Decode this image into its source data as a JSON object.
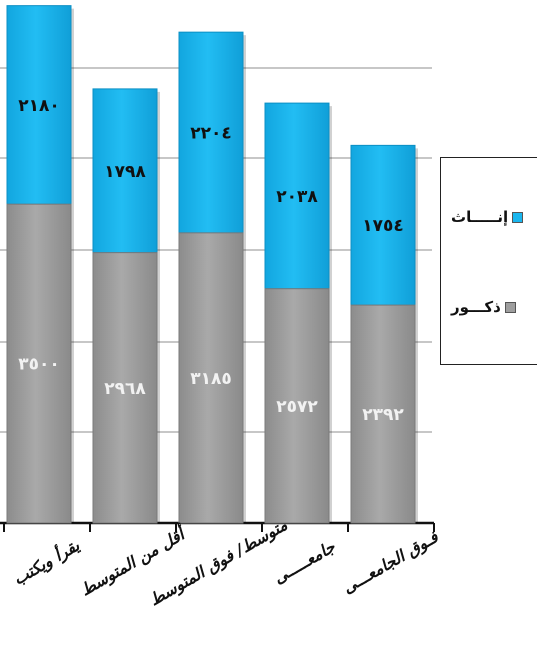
{
  "chart_data": {
    "type": "bar",
    "stacked": true,
    "categories": [
      "يقرأ ويكتب",
      "أقل من المتوسط",
      "متوسط/ فوق المتوسط",
      "جامعـــــى",
      "فـوق الجامعـــى"
    ],
    "series": [
      {
        "name": "ذكـــور",
        "color": "#9E9E9E",
        "values": [
          3500,
          2968,
          3185,
          2572,
          2392
        ]
      },
      {
        "name": "إنـــــاث",
        "color": "#1AB6EE",
        "values": [
          2180,
          1798,
          2204,
          2038,
          1754
        ]
      }
    ],
    "value_labels": {
      "ذكـــور": [
        "٣٥٠٠",
        "٢٩٦٨",
        "٣١٨٥",
        "٢٥٧٢",
        "٢٣٩٢"
      ],
      "إنـــــاث": [
        "٢١٨٠",
        "١٧٩٨",
        "٢٢٠٤",
        "٢٠٣٨",
        "١٧٥٤"
      ]
    },
    "ylim": [
      0,
      6000
    ],
    "grid": true,
    "legend_position": "right"
  },
  "legend": {
    "males": {
      "label": "ذكـــور",
      "color": "#9E9E9E"
    },
    "females": {
      "label": "إنـــــاث",
      "color": "#1AB6EE"
    }
  }
}
